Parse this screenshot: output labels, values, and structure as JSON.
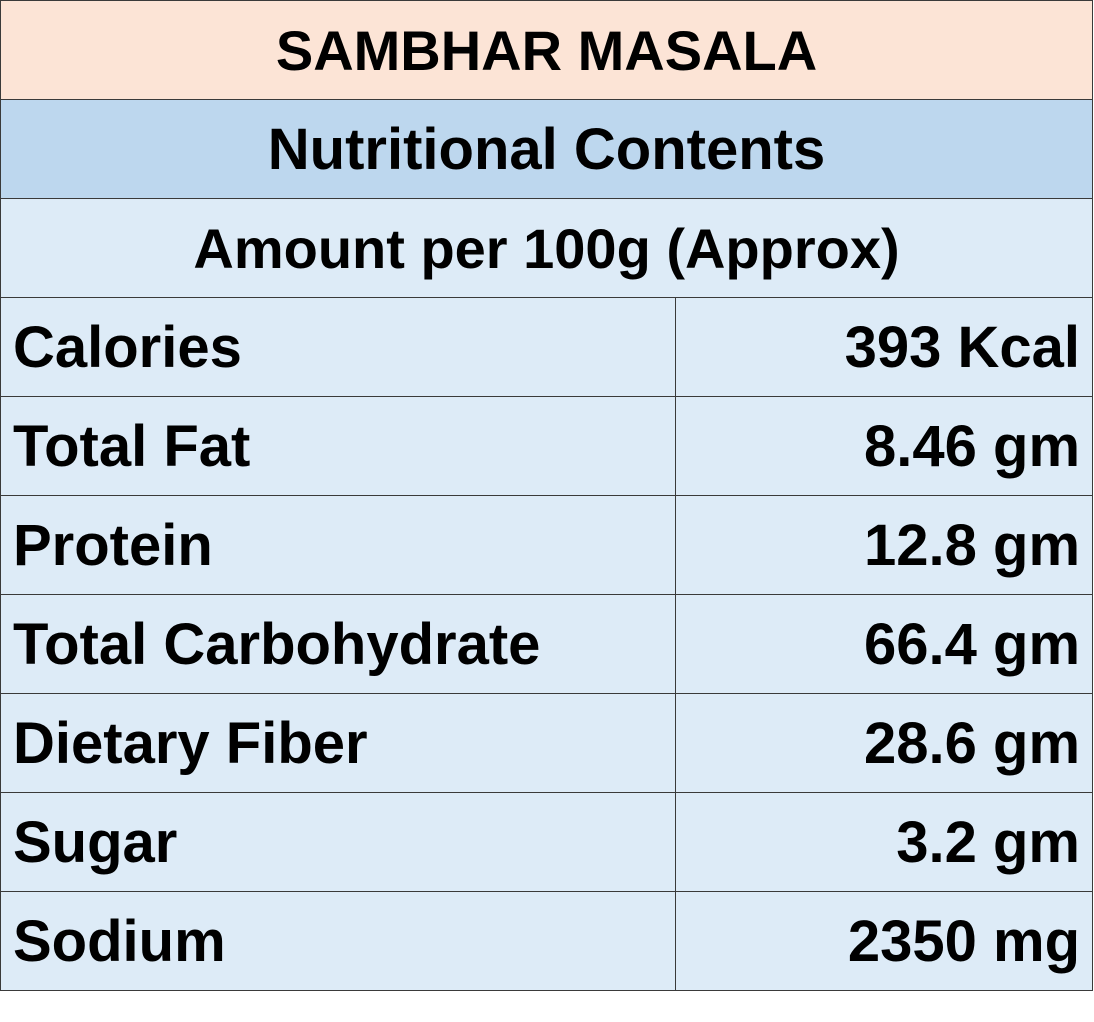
{
  "table": {
    "title": "SAMBHAR MASALA",
    "subtitle": "Nutritional Contents",
    "amount_label": "Amount per 100g (Approx)",
    "rows": [
      {
        "label": "Calories",
        "value": "393 Kcal"
      },
      {
        "label": "Total Fat",
        "value": "8.46 gm"
      },
      {
        "label": "Protein",
        "value": "12.8 gm"
      },
      {
        "label": "Total Carbohydrate",
        "value": "66.4 gm"
      },
      {
        "label": "Dietary Fiber",
        "value": "28.6 gm"
      },
      {
        "label": "Sugar",
        "value": "3.2 gm"
      },
      {
        "label": "Sodium",
        "value": "2350 mg"
      }
    ]
  },
  "colors": {
    "title_bg": "#fce4d6",
    "subtitle_bg": "#bdd7ee",
    "body_bg": "#ddebf7",
    "border": "#3a3a3a",
    "text": "#000000"
  }
}
